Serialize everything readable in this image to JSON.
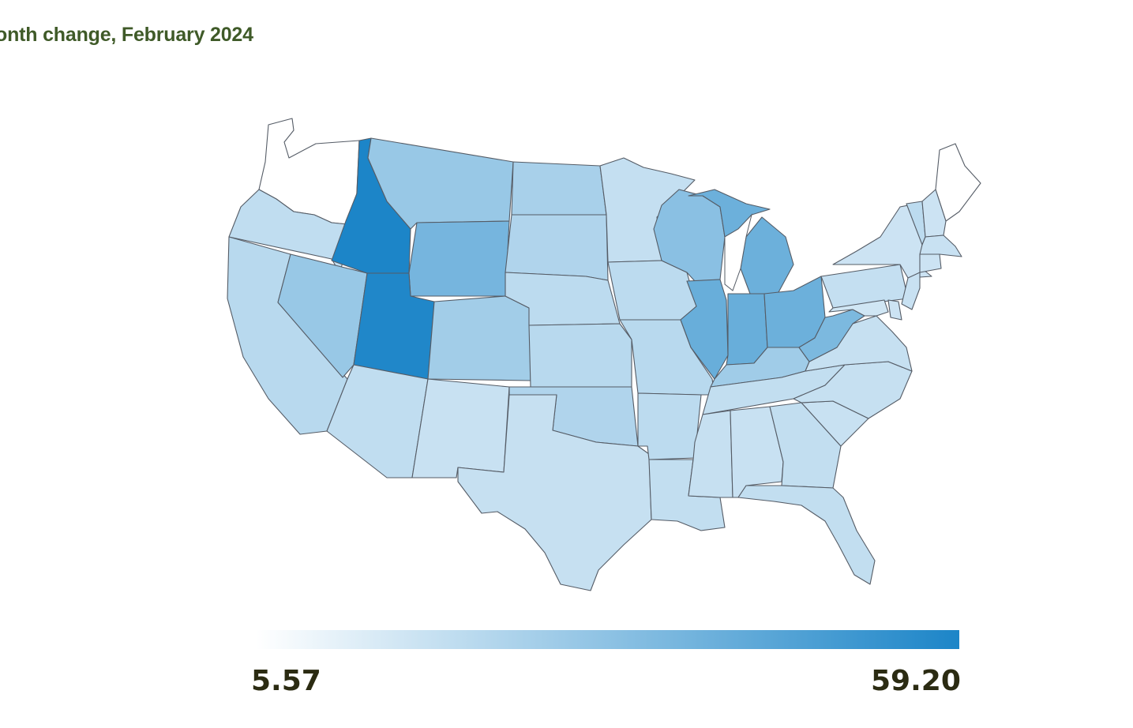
{
  "title": "onth change, February 2024",
  "legend": {
    "min_label": "5.57",
    "max_label": "59.20",
    "min_value": 5.57,
    "max_value": 59.2,
    "color_low": "#ffffff",
    "color_high": "#1c85c8"
  },
  "states": {
    "WA": {
      "name": "Washington",
      "level": 0.0
    },
    "OR": {
      "name": "Oregon",
      "level": 0.18
    },
    "CA": {
      "name": "California",
      "level": 0.22
    },
    "NV": {
      "name": "Nevada",
      "level": 0.38
    },
    "ID": {
      "name": "Idaho",
      "level": 1.0
    },
    "MT": {
      "name": "Montana",
      "level": 0.38
    },
    "WY": {
      "name": "Wyoming",
      "level": 0.55
    },
    "UT": {
      "name": "Utah",
      "level": 0.98
    },
    "AZ": {
      "name": "Arizona",
      "level": 0.18
    },
    "CO": {
      "name": "Colorado",
      "level": 0.33
    },
    "NM": {
      "name": "New Mexico",
      "level": 0.14
    },
    "ND": {
      "name": "North Dakota",
      "level": 0.3
    },
    "SD": {
      "name": "South Dakota",
      "level": 0.26
    },
    "NE": {
      "name": "Nebraska",
      "level": 0.2
    },
    "KS": {
      "name": "Kansas",
      "level": 0.22
    },
    "OK": {
      "name": "Oklahoma",
      "level": 0.26
    },
    "TX": {
      "name": "Texas",
      "level": 0.15
    },
    "MN": {
      "name": "Minnesota",
      "level": 0.16
    },
    "IA": {
      "name": "Iowa",
      "level": 0.2
    },
    "MO": {
      "name": "Missouri",
      "level": 0.22
    },
    "AR": {
      "name": "Arkansas",
      "level": 0.2
    },
    "LA": {
      "name": "Louisiana",
      "level": 0.17
    },
    "WI": {
      "name": "Wisconsin",
      "level": 0.45
    },
    "IL": {
      "name": "Illinois",
      "level": 0.62
    },
    "MI": {
      "name": "Michigan",
      "level": 0.6
    },
    "IN": {
      "name": "Indiana",
      "level": 0.62
    },
    "OH": {
      "name": "Ohio",
      "level": 0.6
    },
    "KY": {
      "name": "Kentucky",
      "level": 0.34
    },
    "TN": {
      "name": "Tennessee",
      "level": 0.17
    },
    "MS": {
      "name": "Mississippi",
      "level": 0.15
    },
    "AL": {
      "name": "Alabama",
      "level": 0.14
    },
    "GA": {
      "name": "Georgia",
      "level": 0.17
    },
    "FL": {
      "name": "Florida",
      "level": 0.17
    },
    "SC": {
      "name": "South Carolina",
      "level": 0.14
    },
    "NC": {
      "name": "North Carolina",
      "level": 0.15
    },
    "VA": {
      "name": "Virginia",
      "level": 0.15
    },
    "WV": {
      "name": "West Virginia",
      "level": 0.52
    },
    "PA": {
      "name": "Pennsylvania",
      "level": 0.16
    },
    "NY": {
      "name": "New York",
      "level": 0.12
    },
    "ME": {
      "name": "Maine",
      "level": 0.0
    },
    "VT": {
      "name": "Vermont",
      "level": 0.2
    },
    "NH": {
      "name": "New Hampshire",
      "level": 0.12
    },
    "MA": {
      "name": "Massachusetts",
      "level": 0.14
    },
    "CT": {
      "name": "Connecticut",
      "level": 0.12
    },
    "NJ": {
      "name": "New Jersey",
      "level": 0.14
    },
    "MD": {
      "name": "Maryland",
      "level": 0.1
    },
    "DE": {
      "name": "Delaware",
      "level": 0.12
    }
  }
}
